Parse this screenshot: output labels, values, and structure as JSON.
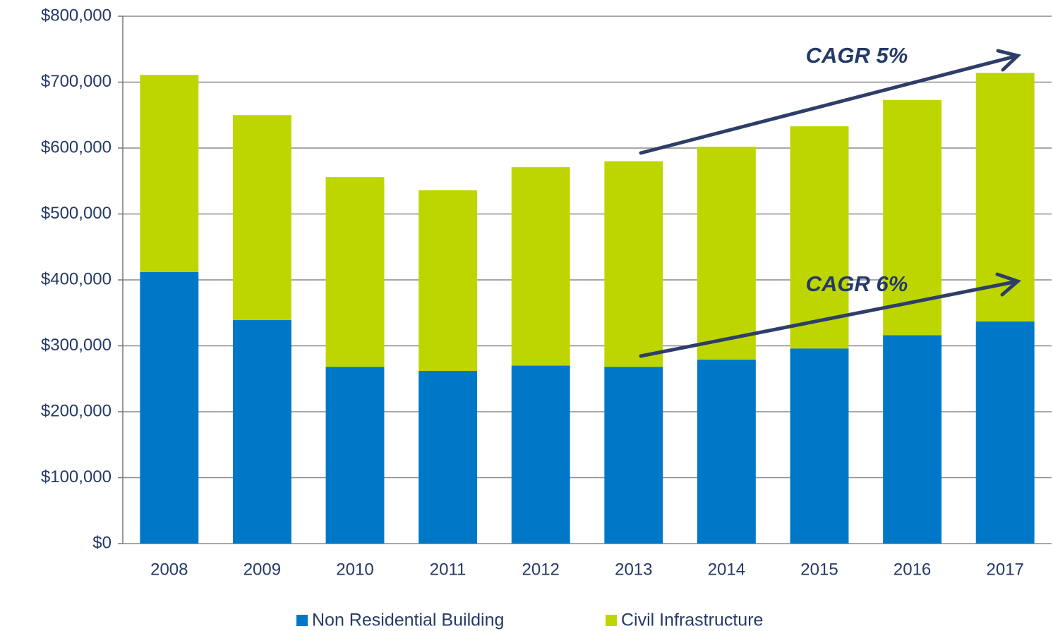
{
  "chart_data": {
    "type": "stacked_bar",
    "categories": [
      "2008",
      "2009",
      "2010",
      "2011",
      "2012",
      "2013",
      "2014",
      "2015",
      "2016",
      "2017"
    ],
    "series": [
      {
        "name": "Non Residential Building",
        "color": "#0078c8",
        "values": [
          412000,
          339000,
          268000,
          262000,
          270000,
          268000,
          279000,
          296000,
          316000,
          337000
        ]
      },
      {
        "name": "Civil Infrastructure",
        "color": "#bed600",
        "values": [
          299000,
          311000,
          288000,
          274000,
          301000,
          312000,
          323000,
          337000,
          357000,
          377000
        ]
      }
    ],
    "ylim": [
      0,
      800000
    ],
    "yticks": [
      {
        "value": 0,
        "label": "$0"
      },
      {
        "value": 100000,
        "label": "$100,000"
      },
      {
        "value": 200000,
        "label": "$200,000"
      },
      {
        "value": 300000,
        "label": "$300,000"
      },
      {
        "value": 400000,
        "label": "$400,000"
      },
      {
        "value": 500000,
        "label": "$500,000"
      },
      {
        "value": 600000,
        "label": "$600,000"
      },
      {
        "value": 700000,
        "label": "$700,000"
      },
      {
        "value": 800000,
        "label": "$800,000"
      }
    ],
    "grid": true,
    "legend": "bottom",
    "annotations": [
      "CAGR 5%",
      "CAGR 6%"
    ]
  }
}
